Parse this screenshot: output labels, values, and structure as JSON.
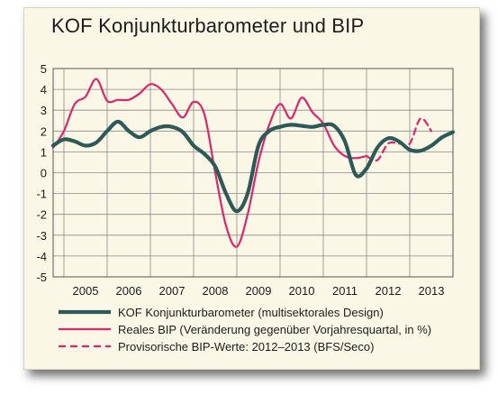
{
  "colors": {
    "background": "#fbf7e6",
    "kof": "#2d5a57",
    "gdp": "#d7276d",
    "grid": "#8a8a8a"
  },
  "chart_data": {
    "type": "line",
    "title": "KOF Konjunkturbarometer und BIP",
    "ylim": [
      -5,
      5
    ],
    "yticks": [
      "5",
      "4",
      "3",
      "2",
      "1",
      "0",
      "-1",
      "-2",
      "-3",
      "-4",
      "-5"
    ],
    "xlim": [
      2004.5,
      2013.75
    ],
    "xticks": [
      "2005",
      "2006",
      "2007",
      "2008",
      "2009",
      "2010",
      "2011",
      "2012",
      "2013"
    ],
    "grid": true,
    "legend_position": "bottom",
    "series": [
      {
        "name": "KOF Konjunkturbarometer (multisektorales Design)",
        "style": "solid-thick",
        "x": [
          2004.5,
          2004.75,
          2005.0,
          2005.25,
          2005.5,
          2005.75,
          2006.0,
          2006.25,
          2006.5,
          2006.75,
          2007.0,
          2007.25,
          2007.5,
          2007.75,
          2008.0,
          2008.25,
          2008.5,
          2008.75,
          2009.0,
          2009.25,
          2009.5,
          2009.75,
          2010.0,
          2010.25,
          2010.5,
          2010.75,
          2011.0,
          2011.25,
          2011.5,
          2011.75,
          2012.0,
          2012.25,
          2012.5,
          2012.75,
          2013.0,
          2013.25,
          2013.5,
          2013.75
        ],
        "values": [
          1.3,
          1.6,
          1.5,
          1.3,
          1.45,
          2.0,
          2.45,
          2.0,
          1.7,
          2.0,
          2.2,
          2.2,
          1.95,
          1.3,
          0.9,
          0.3,
          -1.0,
          -1.85,
          -1.0,
          1.3,
          2.0,
          2.2,
          2.3,
          2.25,
          2.2,
          2.3,
          2.25,
          1.5,
          -0.1,
          0.2,
          1.2,
          1.65,
          1.5,
          1.1,
          1.05,
          1.3,
          1.7,
          1.95
        ]
      },
      {
        "name": "Reales BIP (Veränderung gegenüber Vorjahresquartal, in %)",
        "style": "solid",
        "x": [
          2004.5,
          2004.75,
          2005.0,
          2005.25,
          2005.5,
          2005.75,
          2006.0,
          2006.25,
          2006.5,
          2006.75,
          2007.0,
          2007.25,
          2007.5,
          2007.75,
          2008.0,
          2008.25,
          2008.5,
          2008.75,
          2009.0,
          2009.25,
          2009.5,
          2009.75,
          2010.0,
          2010.25,
          2010.5,
          2010.75,
          2011.0,
          2011.25,
          2011.5,
          2011.75
        ],
        "values": [
          1.2,
          2.0,
          3.3,
          3.65,
          4.5,
          3.45,
          3.5,
          3.5,
          3.8,
          4.25,
          4.0,
          3.3,
          2.65,
          3.4,
          2.8,
          0.0,
          -2.55,
          -3.55,
          -2.0,
          0.5,
          2.3,
          3.3,
          2.6,
          3.6,
          2.9,
          2.35,
          1.3,
          0.8,
          0.7,
          0.8
        ]
      },
      {
        "name": "Provisorische BIP-Werte: 2012–2013 (BFS/Seco)",
        "style": "dashed",
        "x": [
          2011.75,
          2012.0,
          2012.25,
          2012.5,
          2012.75,
          2013.0,
          2013.25
        ],
        "values": [
          0.8,
          0.6,
          1.4,
          1.4,
          1.4,
          2.6,
          2.0
        ]
      }
    ]
  }
}
